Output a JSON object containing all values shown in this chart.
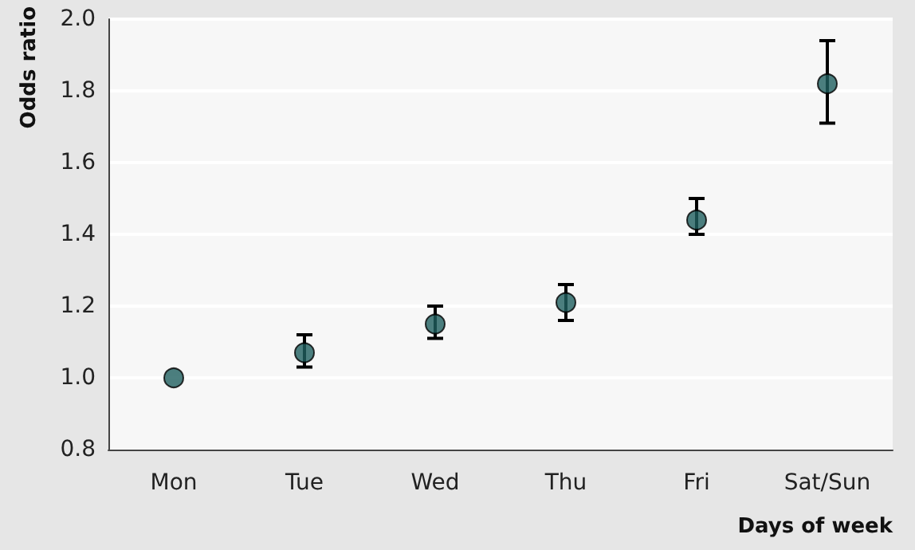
{
  "chart_data": {
    "type": "scatter",
    "xlabel": "Days of week",
    "ylabel": "Odds ratio",
    "categories": [
      "Mon",
      "Tue",
      "Wed",
      "Thu",
      "Fri",
      "Sat/Sun"
    ],
    "series": [
      {
        "color": "#1f5f5f",
        "values": [
          1.0,
          1.07,
          1.15,
          1.21,
          1.44,
          1.82
        ],
        "errors": [
          null,
          [
            1.03,
            1.12
          ],
          [
            1.11,
            1.2
          ],
          [
            1.16,
            1.26
          ],
          [
            1.4,
            1.5
          ],
          [
            1.71,
            1.94
          ]
        ]
      }
    ],
    "ylim": [
      0.8,
      2.0
    ],
    "yticks": [
      0.8,
      {
        "value": 1,
        "label": "1.0"
      },
      1.2,
      1.4,
      1.6,
      1.8,
      {
        "value": 2,
        "label": "2.0"
      }
    ],
    "grid": "y",
    "marker": "circle"
  }
}
